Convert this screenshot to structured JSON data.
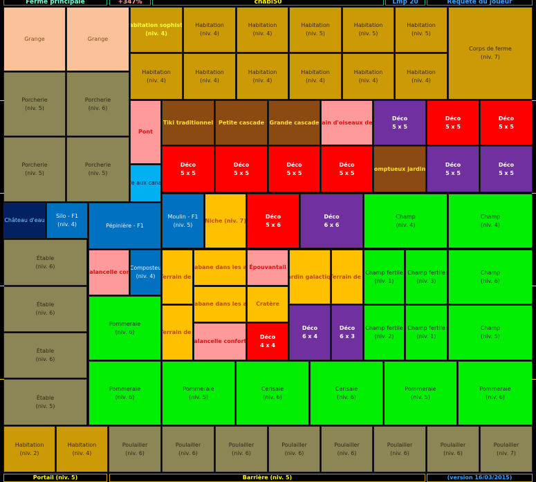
{
  "header": [
    "Ferme principale",
    "+347%",
    "chabi50",
    "Lmp 20",
    "Requête du joueur"
  ],
  "tiles": [
    {
      "label": "Grange"
    },
    {
      "label": "Grange"
    },
    {
      "label": "Habitation sophistic",
      "level": "(niv. 4)"
    },
    {
      "label": "Habitation",
      "level": "(niv. 4)"
    },
    {
      "label": "Habitation",
      "level": "(niv. 4)"
    },
    {
      "label": "Habitation",
      "level": "(niv. 5)"
    },
    {
      "label": "Habitation",
      "level": "(niv. 5)"
    },
    {
      "label": "Habitation",
      "level": "(niv. 5)"
    },
    {
      "label": "Corps de ferme",
      "level": "(niv. 7)"
    },
    {
      "label": "Habitation",
      "level": "(niv. 4)"
    },
    {
      "label": "Habitation",
      "level": "(niv. 4)"
    },
    {
      "label": "Habitation",
      "level": "(niv. 4)"
    },
    {
      "label": "Habitation",
      "level": "(niv. 4)"
    },
    {
      "label": "Habitation",
      "level": "(niv. 4)"
    },
    {
      "label": "Habitation",
      "level": "(niv. 4)"
    },
    {
      "label": "Porcherie",
      "level": "(niv. 5)"
    },
    {
      "label": "Porcherie",
      "level": "(niv. 6)"
    },
    {
      "label": "Porcherie",
      "level": "(niv. 5)"
    },
    {
      "label": "Porcherie",
      "level": "(niv. 5)"
    },
    {
      "label": "Pont"
    },
    {
      "label": "Tiki traditionnel"
    },
    {
      "label": "Petite cascade"
    },
    {
      "label": "Grande cascade"
    },
    {
      "label": "Bain d'oiseaux de l"
    },
    {
      "label": "Déco",
      "level": "5 x 5"
    },
    {
      "label": "Déco",
      "level": "5 x 5"
    },
    {
      "label": "Déco",
      "level": "5 x 5"
    },
    {
      "label": "Déco",
      "level": "5 x 5"
    },
    {
      "label": "Déco",
      "level": "5 x 5"
    },
    {
      "label": "Déco",
      "level": "5 x 5"
    },
    {
      "label": "Déco",
      "level": "5 x 5"
    },
    {
      "label": "Somptueux jardin j"
    },
    {
      "label": "Déco",
      "level": "5 x 5"
    },
    {
      "label": "Déco",
      "level": "5 x 5"
    },
    {
      "label": "Mare aux canards"
    },
    {
      "label": "Château d'eau"
    },
    {
      "label": "Silo - F1",
      "level": "(niv. 4)"
    },
    {
      "label": "Pépinière - F1"
    },
    {
      "label": "Moulin - F1",
      "level": "(niv. 5)"
    },
    {
      "label": "Niche (niv. 7)"
    },
    {
      "label": "Déco",
      "level": "5 x 6"
    },
    {
      "label": "Déco",
      "level": "6 x 6"
    },
    {
      "label": "Champ",
      "level": "(niv. 4)"
    },
    {
      "label": "Champ",
      "level": "(niv. 4)"
    },
    {
      "label": "Étable",
      "level": "(niv. 6)"
    },
    {
      "label": "Étable",
      "level": "(niv. 6)"
    },
    {
      "label": "Étable",
      "level": "(niv. 6)"
    },
    {
      "label": "Étable",
      "level": "(niv. 5)"
    },
    {
      "label": "Balancelle conf"
    },
    {
      "label": "Composteu",
      "level": "(niv. 4)"
    },
    {
      "label": "Terrain de j"
    },
    {
      "label": "Cabane dans les ar"
    },
    {
      "label": "Épouvantail"
    },
    {
      "label": "Jardin galactiqu"
    },
    {
      "label": "Terrain de j"
    },
    {
      "label": "Champ fertile",
      "level": "(niv. 1)"
    },
    {
      "label": "Champ fertile",
      "level": "(niv. 3)"
    },
    {
      "label": "Champ",
      "level": "(niv. 6)"
    },
    {
      "label": "Pommeraie",
      "level": "(niv. 6)"
    },
    {
      "label": "Cabane dans les ar"
    },
    {
      "label": "Cratère"
    },
    {
      "label": "Terrain de j"
    },
    {
      "label": "Balancelle conforta"
    },
    {
      "label": "Déco",
      "level": "4 x 4"
    },
    {
      "label": "Déco",
      "level": "6 x 4"
    },
    {
      "label": "Déco",
      "level": "6 x 3"
    },
    {
      "label": "Champ fertile",
      "level": "(niv. 2)"
    },
    {
      "label": "Champ fertile",
      "level": "(niv. 1)"
    },
    {
      "label": "Champ",
      "level": "(niv. 5)"
    },
    {
      "label": "Pommeraie",
      "level": "(niv. 6)"
    },
    {
      "label": "Pommeraie",
      "level": "(niv. 5)"
    },
    {
      "label": "Cerisaie",
      "level": "(niv. 6)"
    },
    {
      "label": "Cerisaie",
      "level": "(niv. 6)"
    },
    {
      "label": "Pommeraie",
      "level": "(niv. 5)"
    },
    {
      "label": "Pommeraie",
      "level": "(niv. 6)"
    },
    {
      "label": "Habitation",
      "level": "(niv. 2)"
    },
    {
      "label": "Habitation",
      "level": "(niv. 4)"
    },
    {
      "label": "Poulailler",
      "level": "(niv. 6)"
    },
    {
      "label": "Poulailler",
      "level": "(niv. 6)"
    },
    {
      "label": "Poulailler",
      "level": "(niv. 6)"
    },
    {
      "label": "Poulailler",
      "level": "(niv. 6)"
    },
    {
      "label": "Poulailler",
      "level": "(niv. 6)"
    },
    {
      "label": "Poulailler",
      "level": "(niv. 6)"
    },
    {
      "label": "Poulailler",
      "level": "(niv. 6)"
    },
    {
      "label": "Poulailler",
      "level": "(niv. 7)"
    }
  ],
  "footer": [
    "Portail (niv. 5)",
    "Barrière (niv. 5)",
    "(version 16/03/2015)"
  ]
}
